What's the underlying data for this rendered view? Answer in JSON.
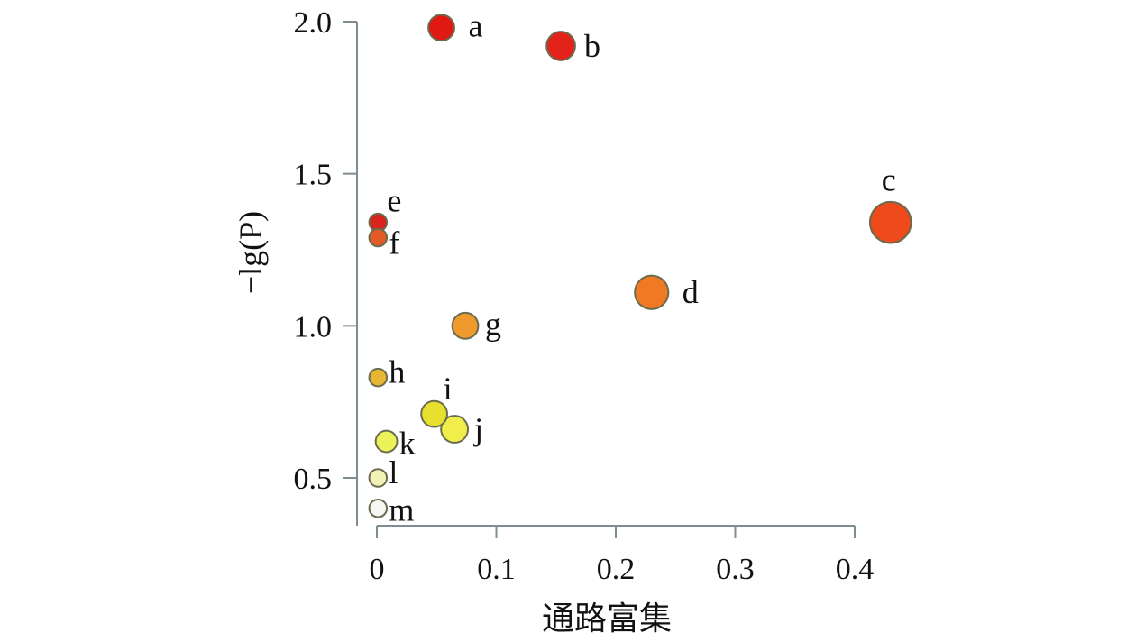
{
  "chart_data": {
    "type": "scatter",
    "title": "",
    "xlabel": "通路富集",
    "ylabel": "−lg(P)",
    "xlim": [
      0,
      0.4
    ],
    "ylim": [
      0.4,
      2.0
    ],
    "xticks": [
      0,
      0.1,
      0.2,
      0.3,
      0.4
    ],
    "xtick_labels": [
      "0",
      "0.1",
      "0.2",
      "0.3",
      "0.4"
    ],
    "yticks": [
      0.5,
      1.0,
      1.5,
      2.0
    ],
    "ytick_labels": [
      "0.5",
      "1.0",
      "1.5",
      "2.0"
    ],
    "grid": false,
    "legend": "none",
    "points": [
      {
        "label": "a",
        "x": 0.054,
        "y": 1.98,
        "size": 0.04,
        "color": "#e01a12"
      },
      {
        "label": "b",
        "x": 0.154,
        "y": 1.92,
        "size": 0.055,
        "color": "#e3231a"
      },
      {
        "label": "c",
        "x": 0.43,
        "y": 1.34,
        "size": 0.16,
        "color": "#ef4a1c"
      },
      {
        "label": "d",
        "x": 0.23,
        "y": 1.11,
        "size": 0.09,
        "color": "#f07a23"
      },
      {
        "label": "e",
        "x": 0.001,
        "y": 1.34,
        "size": 0.008,
        "color": "#d9241c"
      },
      {
        "label": "f",
        "x": 0.001,
        "y": 1.29,
        "size": 0.008,
        "color": "#e25a25"
      },
      {
        "label": "g",
        "x": 0.074,
        "y": 1.0,
        "size": 0.04,
        "color": "#ef9a2c"
      },
      {
        "label": "h",
        "x": 0.001,
        "y": 0.83,
        "size": 0.008,
        "color": "#e8b532"
      },
      {
        "label": "i",
        "x": 0.048,
        "y": 0.71,
        "size": 0.04,
        "color": "#e7e02e"
      },
      {
        "label": "j",
        "x": 0.065,
        "y": 0.66,
        "size": 0.045,
        "color": "#f1ee4c"
      },
      {
        "label": "k",
        "x": 0.008,
        "y": 0.62,
        "size": 0.02,
        "color": "#ecf25a"
      },
      {
        "label": "l",
        "x": 0.001,
        "y": 0.5,
        "size": 0.008,
        "color": "#f2f1b8"
      },
      {
        "label": "m",
        "x": 0.001,
        "y": 0.4,
        "size": 0.008,
        "color": "#f6f6f3"
      }
    ]
  }
}
